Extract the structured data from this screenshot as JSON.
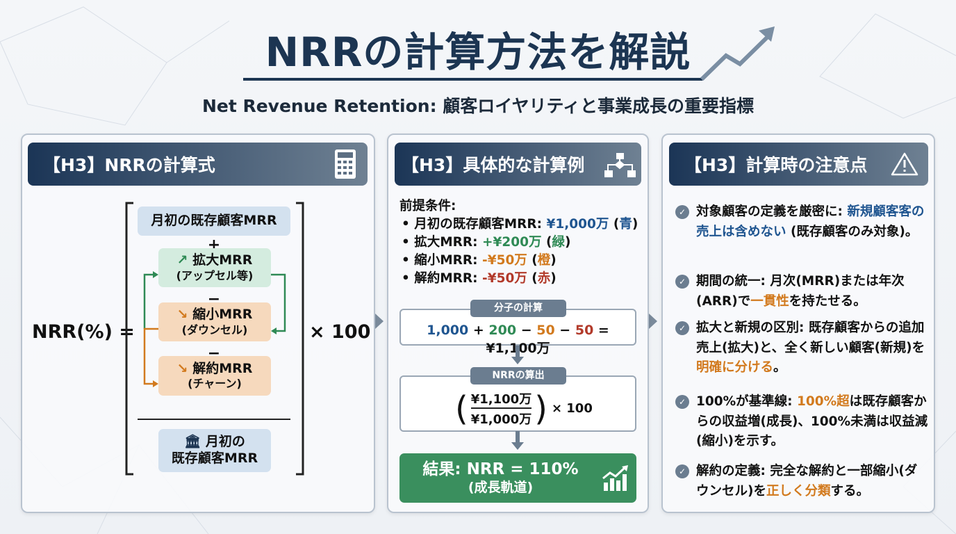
{
  "header": {
    "title": "NRRの計算方法を解説",
    "subtitle": "Net Revenue Retention: 顧客ロイヤリティと事業成長の重要指標"
  },
  "colors": {
    "navy": "#1c3552",
    "green": "#2f8a55",
    "orange": "#d27a1e",
    "red": "#b23a2a",
    "blue": "#1f5590"
  },
  "formula": {
    "heading": "【H3】NRRの計算式",
    "icon": "calculator-icon",
    "lhs": "NRR(%) =",
    "times": "× 100",
    "start": "月初の既存顧客MRR",
    "plus": "+",
    "minus": "−",
    "expansion": {
      "label": "拡大MRR",
      "sub": "(アップセル等)"
    },
    "contraction": {
      "label": "縮小MRR",
      "sub": "(ダウンセル)"
    },
    "churn": {
      "label": "解約MRR",
      "sub": "(チャーン)"
    },
    "denominator": {
      "line1": "月初の",
      "line2": "既存顧客MRR",
      "icon": "bank-icon"
    }
  },
  "example": {
    "heading": "【H3】具体的な計算例",
    "icon": "flowchart-icon",
    "premise": "前提条件:",
    "items": [
      {
        "label": "月初の既存顧客MRR: ",
        "value": "¥1,000万",
        "note": "青",
        "color": "blue"
      },
      {
        "label": "拡大MRR: ",
        "value": "+¥200万",
        "note": "緑",
        "color": "green"
      },
      {
        "label": "縮小MRR: ",
        "value": "-¥50万",
        "note": "橙",
        "color": "orange"
      },
      {
        "label": "解約MRR: ",
        "value": "-¥50万",
        "note": "赤",
        "color": "red"
      }
    ],
    "numerator_tag": "分子の計算",
    "numerator": {
      "a": "1,000",
      "op1": " + ",
      "b": "200",
      "op2": " − ",
      "c": "50",
      "op3": " − ",
      "d": "50",
      "result": " = ¥1,100万"
    },
    "nrr_tag": "NRRの算出",
    "fraction": {
      "top": "¥1,100万",
      "bottom": "¥1,000万",
      "times": "× 100"
    },
    "result": {
      "line1": "結果: NRR = 110%",
      "line2": "(成長軌道)",
      "icon": "growth-chart-icon"
    }
  },
  "cautions": {
    "heading": "【H3】計算時の注意点",
    "icon": "warning-icon",
    "items": [
      [
        {
          "t": "対象顧客の定義を厳密に: "
        },
        {
          "t": "新規顧客客の売上は含めない",
          "c": "b"
        },
        {
          "t": " (既存顧客のみ対象)。"
        }
      ],
      [
        {
          "t": "期間の統一: 月次(MRR)または年次(ARR)で"
        },
        {
          "t": "一貫性",
          "c": "o"
        },
        {
          "t": "を持たせる。"
        }
      ],
      [
        {
          "t": "拡大と新規の区別: 既存顧客からの追加売上(拡大)と、全く新しい顧客(新規)を"
        },
        {
          "t": "明確に分ける",
          "c": "o"
        },
        {
          "t": "。"
        }
      ],
      [
        {
          "t": "100%が基準線: "
        },
        {
          "t": "100%超",
          "c": "o"
        },
        {
          "t": "は既存顧客からの収益増(成長)、100%未満は収益減(縮小)を示す。"
        }
      ],
      [
        {
          "t": "解約の定義: 完全な解約と一部縮小(ダウンセル)を"
        },
        {
          "t": "正しく分類",
          "c": "o"
        },
        {
          "t": "する。"
        }
      ]
    ]
  }
}
